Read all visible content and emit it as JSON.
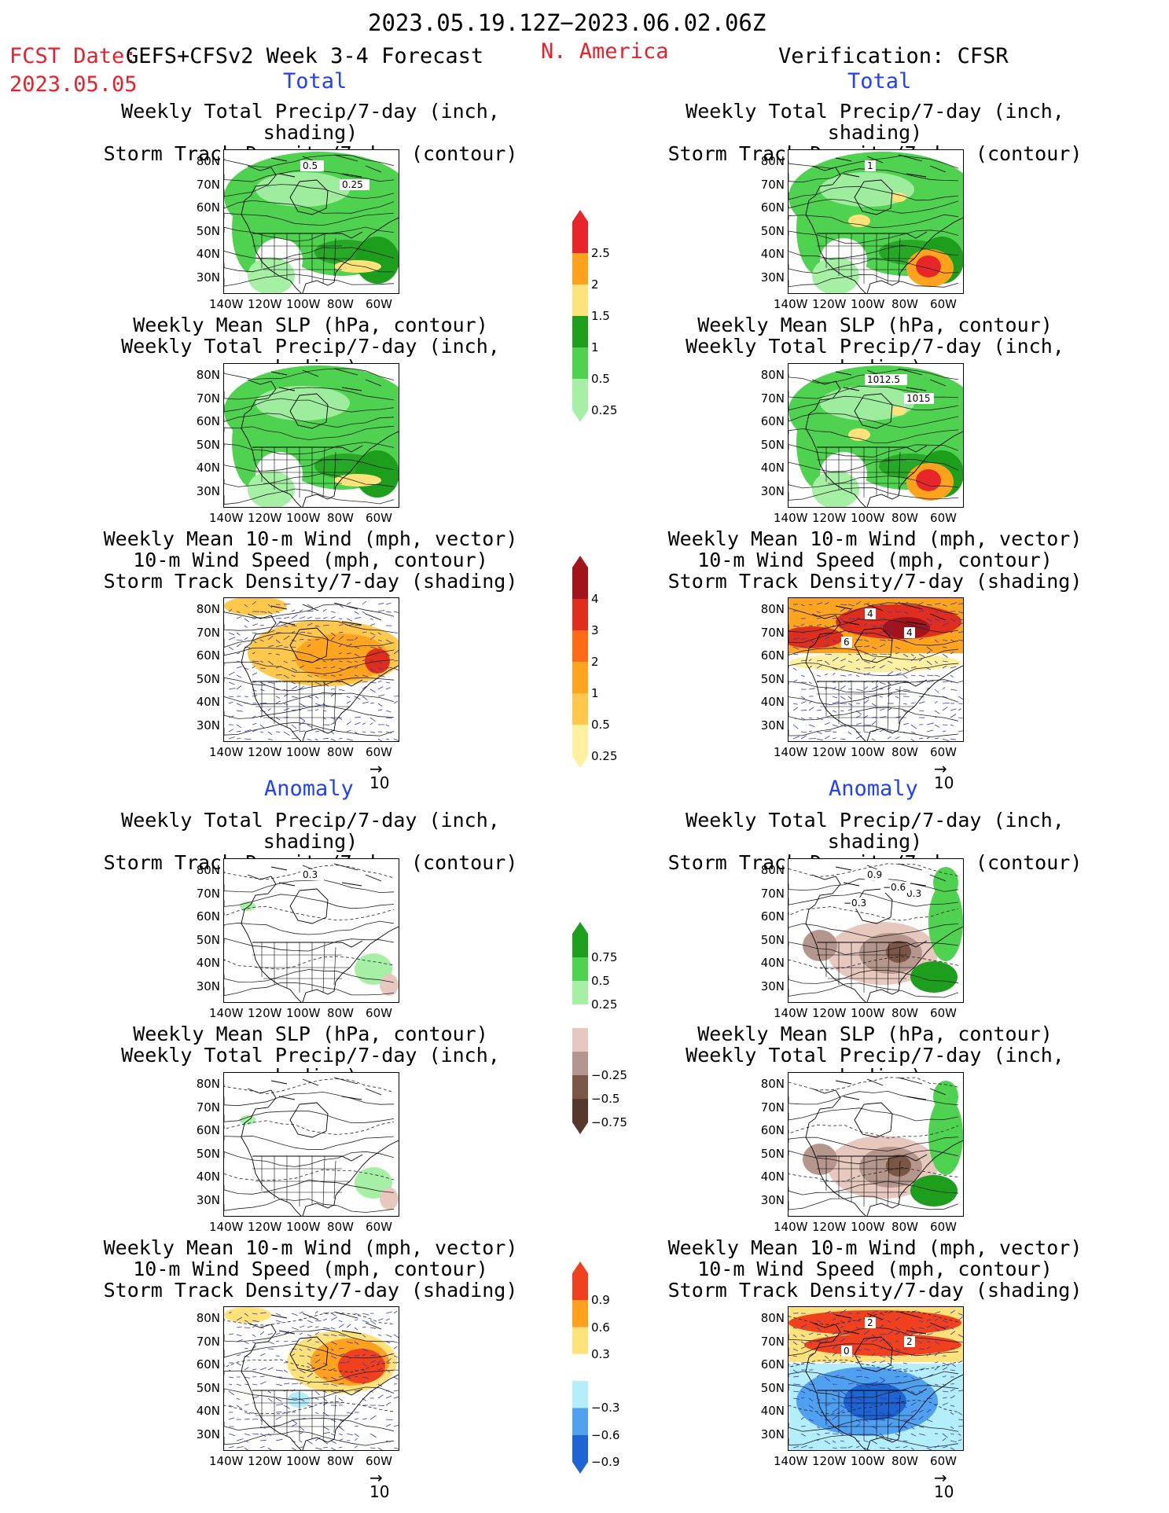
{
  "header": {
    "period": "2023.05.19.12Z−2023.06.02.06Z",
    "fcst_label": "FCST Date:",
    "fcst_model": "GEFS+CFSv2 Week 3-4 Forecast",
    "fcst_date": "2023.05.05",
    "region": "N. America",
    "verification": "Verification: CFSR"
  },
  "sections": {
    "total": "Total",
    "anomaly": "Anomaly"
  },
  "panel_titles": {
    "precip_storm": [
      "Weekly Total Precip/7-day (inch, shading)",
      "Storm Track Density/7-day (contour)"
    ],
    "slp_precip": [
      "Weekly Mean SLP (hPa, contour)",
      "Weekly Total Precip/7-day (inch, shading)"
    ],
    "wind_storm": [
      "Weekly Mean 10-m Wind (mph, vector)",
      "10-m Wind Speed (mph, contour)",
      "Storm Track Density/7-day (shading)"
    ]
  },
  "axes": {
    "lat": [
      "80N",
      "70N",
      "60N",
      "50N",
      "40N",
      "30N"
    ],
    "lon": [
      "140W",
      "120W",
      "100W",
      "80W",
      "60W"
    ]
  },
  "vector_reference": "10",
  "contour_labels": {
    "fc_total_precip": [
      "0.5",
      "0.25"
    ],
    "ob_total_precip": [
      "1"
    ],
    "ob_total_slp": [
      "1012.5",
      "1015"
    ],
    "ob_total_wind": [
      "4",
      "4",
      "6"
    ],
    "fc_anom_precip": [
      "0.3"
    ],
    "ob_anom_precip": [
      "0.9",
      "0.3",
      "−0.3",
      "−0.6"
    ],
    "ob_anom_wind": [
      "2",
      "2",
      "0"
    ]
  },
  "colorbars": {
    "precip_total": {
      "labels": [
        "2.5",
        "2",
        "1.5",
        "1",
        "0.5",
        "0.25"
      ],
      "colors": [
        "#e8262a",
        "#ffa31f",
        "#ffe27a",
        "#1d9e1d",
        "#4fd24f",
        "#a6f0a6"
      ]
    },
    "storm_total": {
      "labels": [
        "4",
        "3",
        "2",
        "1",
        "0.5",
        "0.25"
      ],
      "colors": [
        "#a0141a",
        "#e02e1e",
        "#ff6a14",
        "#ffa41e",
        "#ffc84a",
        "#fff0a0"
      ]
    },
    "precip_anom": {
      "labels": [
        "0.75",
        "0.5",
        "0.25",
        "−0.25",
        "−0.5",
        "−0.75"
      ],
      "colors": [
        "#1d9e1d",
        "#4fd24f",
        "#a6f0a6",
        "#ffffff",
        "#e6c8be",
        "#b4968c",
        "#7a5646",
        "#56382c"
      ]
    },
    "storm_anom": {
      "labels": [
        "0.9",
        "0.6",
        "0.3",
        "−0.3",
        "−0.6",
        "−0.9"
      ],
      "colors": [
        "#f0401e",
        "#ffa01e",
        "#ffe27a",
        "#ffffff",
        "#b4eefa",
        "#50a0f0",
        "#1e64d2"
      ]
    }
  }
}
